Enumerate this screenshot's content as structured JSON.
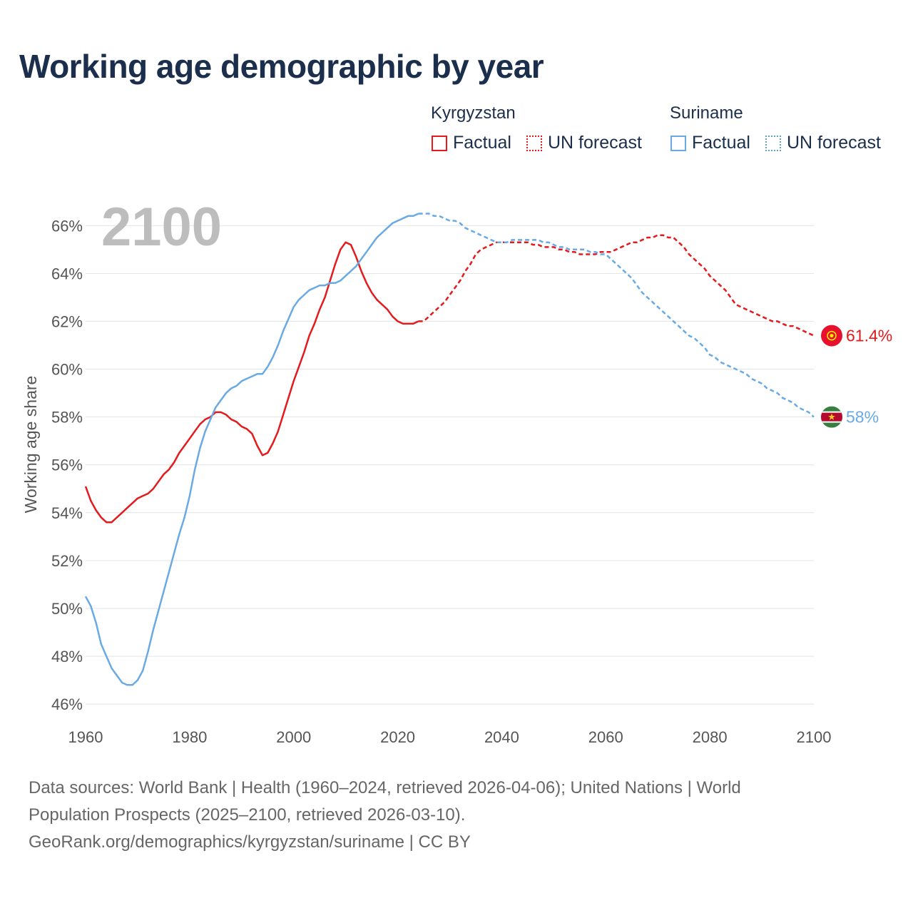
{
  "title": "Working age demographic by year",
  "legend": {
    "groups": [
      {
        "name": "Kyrgyzstan",
        "factual": "Factual",
        "forecast": "UN forecast"
      },
      {
        "name": "Suriname",
        "factual": "Factual",
        "forecast": "UN forecast"
      }
    ]
  },
  "footer": {
    "line1": "Data sources: World Bank | Health (1960–2024, retrieved 2026-04-06); United Nations | World",
    "line2": "Population Prospects (2025–2100, retrieved 2026-03-10).",
    "line3": "GeoRank.org/demographics/kyrgyzstan/suriname | CC BY"
  },
  "chart_data": {
    "type": "line",
    "title": "Working age demographic by year",
    "year_display": "2100",
    "xlabel": "",
    "ylabel": "Working age share",
    "xlim": [
      1960,
      2100
    ],
    "ylim": [
      45.2,
      67.2
    ],
    "x_ticks": [
      1960,
      1980,
      2000,
      2020,
      2040,
      2060,
      2080,
      2100
    ],
    "y_ticks": [
      46,
      48,
      50,
      52,
      54,
      56,
      58,
      60,
      62,
      64,
      66
    ],
    "y_tick_labels": [
      "46%",
      "48%",
      "50%",
      "52%",
      "54%",
      "56%",
      "58%",
      "60%",
      "62%",
      "64%",
      "66%"
    ],
    "grid": true,
    "legend_position": "top-right",
    "series": [
      {
        "name": "Kyrgyzstan",
        "color": "#e41a1c",
        "end_label": "61.4%",
        "end_value": 61.4,
        "factual": [
          [
            1960,
            55.1
          ],
          [
            1961,
            54.5
          ],
          [
            1962,
            54.1
          ],
          [
            1963,
            53.8
          ],
          [
            1964,
            53.6
          ],
          [
            1965,
            53.6
          ],
          [
            1966,
            53.8
          ],
          [
            1967,
            54.0
          ],
          [
            1968,
            54.2
          ],
          [
            1969,
            54.4
          ],
          [
            1970,
            54.6
          ],
          [
            1971,
            54.7
          ],
          [
            1972,
            54.8
          ],
          [
            1973,
            55.0
          ],
          [
            1974,
            55.3
          ],
          [
            1975,
            55.6
          ],
          [
            1976,
            55.8
          ],
          [
            1977,
            56.1
          ],
          [
            1978,
            56.5
          ],
          [
            1979,
            56.8
          ],
          [
            1980,
            57.1
          ],
          [
            1981,
            57.4
          ],
          [
            1982,
            57.7
          ],
          [
            1983,
            57.9
          ],
          [
            1984,
            58.0
          ],
          [
            1985,
            58.2
          ],
          [
            1986,
            58.2
          ],
          [
            1987,
            58.1
          ],
          [
            1988,
            57.9
          ],
          [
            1989,
            57.8
          ],
          [
            1990,
            57.6
          ],
          [
            1991,
            57.5
          ],
          [
            1992,
            57.3
          ],
          [
            1993,
            56.8
          ],
          [
            1994,
            56.4
          ],
          [
            1995,
            56.5
          ],
          [
            1996,
            56.9
          ],
          [
            1997,
            57.4
          ],
          [
            1998,
            58.1
          ],
          [
            1999,
            58.8
          ],
          [
            2000,
            59.5
          ],
          [
            2001,
            60.1
          ],
          [
            2002,
            60.7
          ],
          [
            2003,
            61.4
          ],
          [
            2004,
            61.9
          ],
          [
            2005,
            62.5
          ],
          [
            2006,
            63.0
          ],
          [
            2007,
            63.7
          ],
          [
            2008,
            64.4
          ],
          [
            2009,
            65.0
          ],
          [
            2010,
            65.3
          ],
          [
            2011,
            65.2
          ],
          [
            2012,
            64.7
          ],
          [
            2013,
            64.1
          ],
          [
            2014,
            63.6
          ],
          [
            2015,
            63.2
          ],
          [
            2016,
            62.9
          ],
          [
            2017,
            62.7
          ],
          [
            2018,
            62.5
          ],
          [
            2019,
            62.2
          ],
          [
            2020,
            62.0
          ],
          [
            2021,
            61.9
          ],
          [
            2022,
            61.9
          ],
          [
            2023,
            61.9
          ],
          [
            2024,
            62.0
          ]
        ],
        "forecast": [
          [
            2024,
            62.0
          ],
          [
            2025,
            62.0
          ],
          [
            2026,
            62.2
          ],
          [
            2027,
            62.4
          ],
          [
            2028,
            62.6
          ],
          [
            2029,
            62.8
          ],
          [
            2030,
            63.1
          ],
          [
            2031,
            63.4
          ],
          [
            2032,
            63.7
          ],
          [
            2033,
            64.1
          ],
          [
            2034,
            64.4
          ],
          [
            2035,
            64.8
          ],
          [
            2036,
            65.0
          ],
          [
            2037,
            65.1
          ],
          [
            2038,
            65.2
          ],
          [
            2039,
            65.3
          ],
          [
            2040,
            65.3
          ],
          [
            2041,
            65.3
          ],
          [
            2042,
            65.3
          ],
          [
            2043,
            65.3
          ],
          [
            2044,
            65.3
          ],
          [
            2045,
            65.3
          ],
          [
            2046,
            65.2
          ],
          [
            2047,
            65.2
          ],
          [
            2048,
            65.1
          ],
          [
            2049,
            65.1
          ],
          [
            2050,
            65.1
          ],
          [
            2051,
            65.0
          ],
          [
            2052,
            65.0
          ],
          [
            2053,
            64.9
          ],
          [
            2054,
            64.9
          ],
          [
            2055,
            64.8
          ],
          [
            2056,
            64.8
          ],
          [
            2057,
            64.8
          ],
          [
            2058,
            64.8
          ],
          [
            2059,
            64.9
          ],
          [
            2060,
            64.9
          ],
          [
            2061,
            64.9
          ],
          [
            2062,
            65.0
          ],
          [
            2063,
            65.1
          ],
          [
            2064,
            65.2
          ],
          [
            2065,
            65.3
          ],
          [
            2066,
            65.3
          ],
          [
            2067,
            65.4
          ],
          [
            2068,
            65.5
          ],
          [
            2069,
            65.5
          ],
          [
            2070,
            65.6
          ],
          [
            2071,
            65.6
          ],
          [
            2072,
            65.5
          ],
          [
            2073,
            65.5
          ],
          [
            2074,
            65.3
          ],
          [
            2075,
            65.1
          ],
          [
            2076,
            64.8
          ],
          [
            2077,
            64.6
          ],
          [
            2078,
            64.4
          ],
          [
            2079,
            64.2
          ],
          [
            2080,
            63.9
          ],
          [
            2081,
            63.7
          ],
          [
            2082,
            63.5
          ],
          [
            2083,
            63.3
          ],
          [
            2084,
            63.0
          ],
          [
            2085,
            62.7
          ],
          [
            2086,
            62.6
          ],
          [
            2087,
            62.5
          ],
          [
            2088,
            62.4
          ],
          [
            2089,
            62.3
          ],
          [
            2090,
            62.2
          ],
          [
            2091,
            62.1
          ],
          [
            2092,
            62.0
          ],
          [
            2093,
            62.0
          ],
          [
            2094,
            61.9
          ],
          [
            2095,
            61.8
          ],
          [
            2096,
            61.8
          ],
          [
            2097,
            61.7
          ],
          [
            2098,
            61.6
          ],
          [
            2099,
            61.5
          ],
          [
            2100,
            61.4
          ]
        ]
      },
      {
        "name": "Suriname",
        "color": "#6aaae4",
        "end_label": "58%",
        "end_value": 58.0,
        "factual": [
          [
            1960,
            50.5
          ],
          [
            1961,
            50.1
          ],
          [
            1962,
            49.4
          ],
          [
            1963,
            48.5
          ],
          [
            1964,
            48.0
          ],
          [
            1965,
            47.5
          ],
          [
            1966,
            47.2
          ],
          [
            1967,
            46.9
          ],
          [
            1968,
            46.8
          ],
          [
            1969,
            46.8
          ],
          [
            1970,
            47.0
          ],
          [
            1971,
            47.4
          ],
          [
            1972,
            48.2
          ],
          [
            1973,
            49.1
          ],
          [
            1974,
            49.9
          ],
          [
            1975,
            50.7
          ],
          [
            1976,
            51.5
          ],
          [
            1977,
            52.3
          ],
          [
            1978,
            53.1
          ],
          [
            1979,
            53.8
          ],
          [
            1980,
            54.7
          ],
          [
            1981,
            55.8
          ],
          [
            1982,
            56.7
          ],
          [
            1983,
            57.4
          ],
          [
            1984,
            57.9
          ],
          [
            1985,
            58.4
          ],
          [
            1986,
            58.7
          ],
          [
            1987,
            59.0
          ],
          [
            1988,
            59.2
          ],
          [
            1989,
            59.3
          ],
          [
            1990,
            59.5
          ],
          [
            1991,
            59.6
          ],
          [
            1992,
            59.7
          ],
          [
            1993,
            59.8
          ],
          [
            1994,
            59.8
          ],
          [
            1995,
            60.1
          ],
          [
            1996,
            60.5
          ],
          [
            1997,
            61.0
          ],
          [
            1998,
            61.6
          ],
          [
            1999,
            62.1
          ],
          [
            2000,
            62.6
          ],
          [
            2001,
            62.9
          ],
          [
            2002,
            63.1
          ],
          [
            2003,
            63.3
          ],
          [
            2004,
            63.4
          ],
          [
            2005,
            63.5
          ],
          [
            2006,
            63.5
          ],
          [
            2007,
            63.6
          ],
          [
            2008,
            63.6
          ],
          [
            2009,
            63.7
          ],
          [
            2010,
            63.9
          ],
          [
            2011,
            64.1
          ],
          [
            2012,
            64.3
          ],
          [
            2013,
            64.6
          ],
          [
            2014,
            64.9
          ],
          [
            2015,
            65.2
          ],
          [
            2016,
            65.5
          ],
          [
            2017,
            65.7
          ],
          [
            2018,
            65.9
          ],
          [
            2019,
            66.1
          ],
          [
            2020,
            66.2
          ],
          [
            2021,
            66.3
          ],
          [
            2022,
            66.4
          ],
          [
            2023,
            66.4
          ],
          [
            2024,
            66.5
          ]
        ],
        "forecast": [
          [
            2024,
            66.5
          ],
          [
            2025,
            66.5
          ],
          [
            2026,
            66.5
          ],
          [
            2027,
            66.4
          ],
          [
            2028,
            66.4
          ],
          [
            2029,
            66.3
          ],
          [
            2030,
            66.2
          ],
          [
            2031,
            66.2
          ],
          [
            2032,
            66.1
          ],
          [
            2033,
            65.9
          ],
          [
            2034,
            65.8
          ],
          [
            2035,
            65.7
          ],
          [
            2036,
            65.6
          ],
          [
            2037,
            65.5
          ],
          [
            2038,
            65.4
          ],
          [
            2039,
            65.3
          ],
          [
            2040,
            65.3
          ],
          [
            2041,
            65.3
          ],
          [
            2042,
            65.4
          ],
          [
            2043,
            65.4
          ],
          [
            2044,
            65.4
          ],
          [
            2045,
            65.4
          ],
          [
            2046,
            65.4
          ],
          [
            2047,
            65.4
          ],
          [
            2048,
            65.3
          ],
          [
            2049,
            65.3
          ],
          [
            2050,
            65.2
          ],
          [
            2051,
            65.1
          ],
          [
            2052,
            65.1
          ],
          [
            2053,
            65.0
          ],
          [
            2054,
            65.0
          ],
          [
            2055,
            65.0
          ],
          [
            2056,
            65.0
          ],
          [
            2057,
            64.9
          ],
          [
            2058,
            64.9
          ],
          [
            2059,
            64.8
          ],
          [
            2060,
            64.8
          ],
          [
            2061,
            64.6
          ],
          [
            2062,
            64.4
          ],
          [
            2063,
            64.2
          ],
          [
            2064,
            64.0
          ],
          [
            2065,
            63.8
          ],
          [
            2066,
            63.5
          ],
          [
            2067,
            63.2
          ],
          [
            2068,
            63.0
          ],
          [
            2069,
            62.8
          ],
          [
            2070,
            62.6
          ],
          [
            2071,
            62.4
          ],
          [
            2072,
            62.2
          ],
          [
            2073,
            62.0
          ],
          [
            2074,
            61.8
          ],
          [
            2075,
            61.6
          ],
          [
            2076,
            61.4
          ],
          [
            2077,
            61.3
          ],
          [
            2078,
            61.1
          ],
          [
            2079,
            60.9
          ],
          [
            2080,
            60.6
          ],
          [
            2081,
            60.5
          ],
          [
            2082,
            60.3
          ],
          [
            2083,
            60.2
          ],
          [
            2084,
            60.1
          ],
          [
            2085,
            60.0
          ],
          [
            2086,
            59.9
          ],
          [
            2087,
            59.8
          ],
          [
            2088,
            59.6
          ],
          [
            2089,
            59.5
          ],
          [
            2090,
            59.4
          ],
          [
            2091,
            59.2
          ],
          [
            2092,
            59.1
          ],
          [
            2093,
            59.0
          ],
          [
            2094,
            58.8
          ],
          [
            2095,
            58.7
          ],
          [
            2096,
            58.6
          ],
          [
            2097,
            58.4
          ],
          [
            2098,
            58.3
          ],
          [
            2099,
            58.2
          ],
          [
            2100,
            58.0
          ]
        ]
      }
    ]
  }
}
